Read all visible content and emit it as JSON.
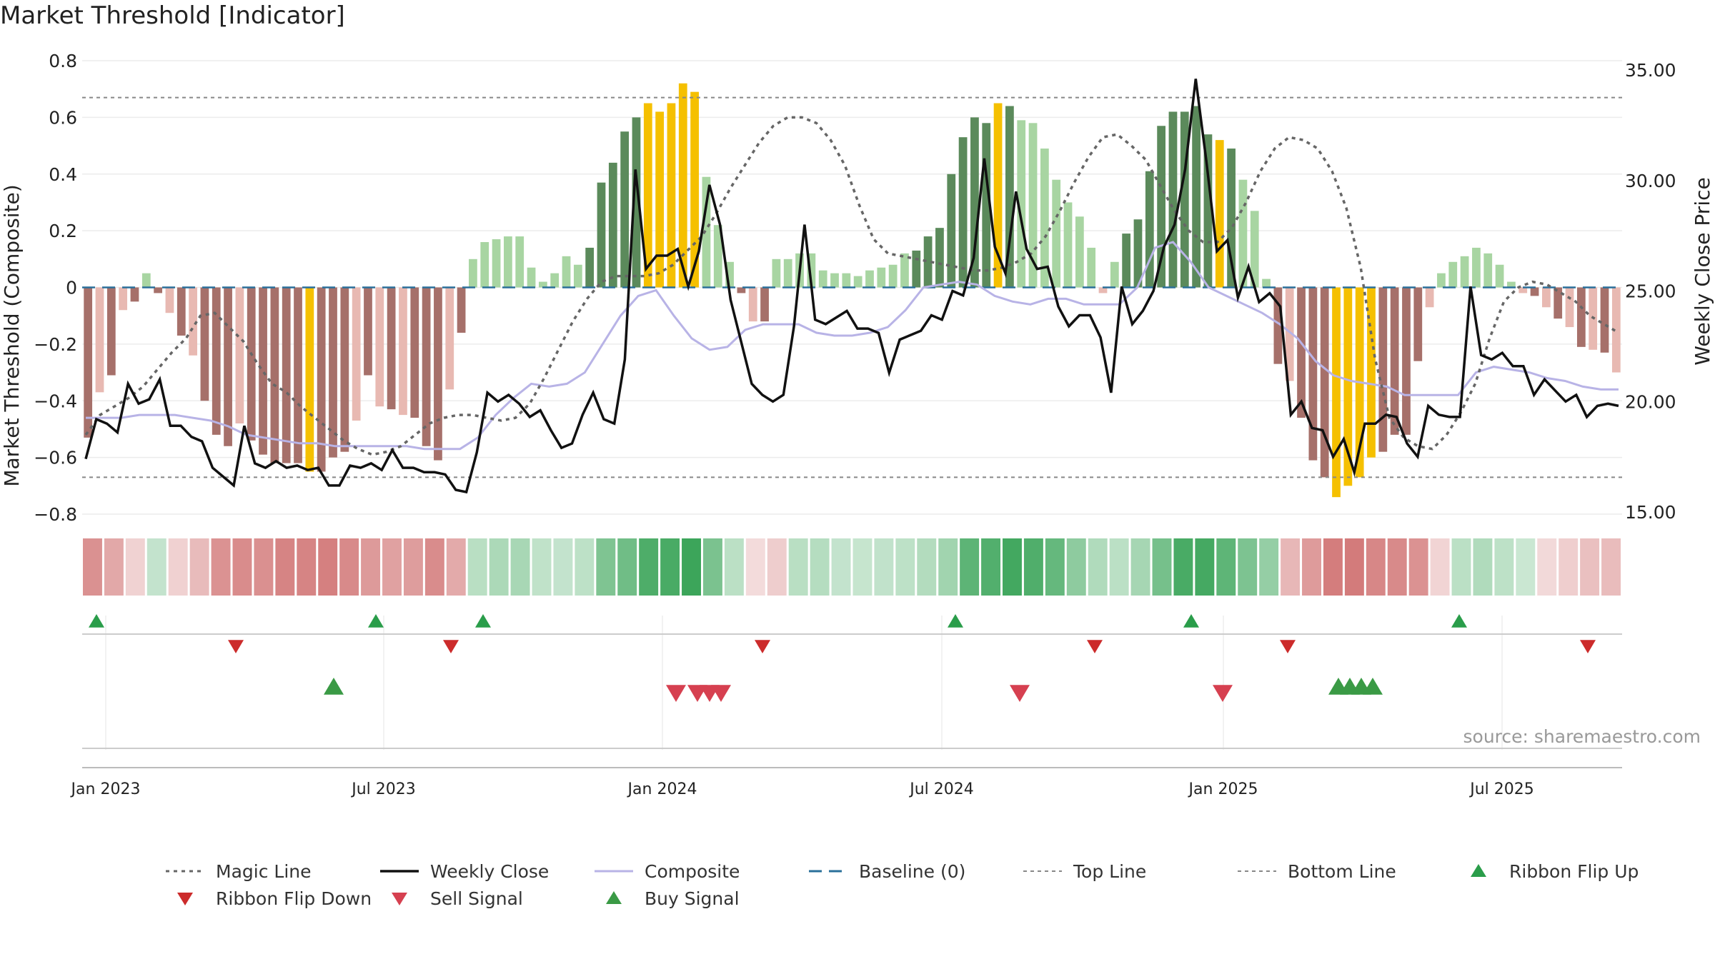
{
  "title": "Market Threshold [Indicator]",
  "source": "source: sharemaestro.com",
  "colors": {
    "strong_green": "#5b8a5b",
    "light_green": "#a8d5a2",
    "strong_red": "#a6706a",
    "light_red": "#e8b9b2",
    "gold": "#f5c000",
    "magic": "#666666",
    "close": "#111111",
    "composite": "#b8b3e6",
    "baseline": "#2a6f9a",
    "refline": "#888888",
    "flip_up": "#2a9d4a",
    "flip_down": "#cc2b2b",
    "sell": "#d64050",
    "buy": "#3a9a45"
  },
  "legend": [
    {
      "key": "magic",
      "label": "Magic Line"
    },
    {
      "key": "close",
      "label": "Weekly Close"
    },
    {
      "key": "composite",
      "label": "Composite"
    },
    {
      "key": "baseline",
      "label": "Baseline (0)"
    },
    {
      "key": "top",
      "label": "Top Line"
    },
    {
      "key": "bottom",
      "label": "Bottom Line"
    },
    {
      "key": "flip_up",
      "label": "Ribbon Flip Up"
    },
    {
      "key": "flip_down",
      "label": "Ribbon Flip Down"
    },
    {
      "key": "sell",
      "label": "Sell Signal"
    },
    {
      "key": "buy",
      "label": "Buy Signal"
    }
  ],
  "chart_data": {
    "type": "bar",
    "title": "Market Threshold [Indicator]",
    "ylabel": "Market Threshold (Composite)",
    "y2label": "Weekly Close Price",
    "ylim": [
      -0.8,
      0.8
    ],
    "y2lim": [
      15.0,
      35.0
    ],
    "yticks": [
      "0.8",
      "0.6",
      "0.4",
      "0.2",
      "0",
      "−0.2",
      "−0.4",
      "−0.6",
      "−0.8"
    ],
    "y2ticks": [
      "35.00",
      "30.00",
      "25.00",
      "20.00",
      "15.00"
    ],
    "xticks": [
      "Jan 2023",
      "Jul 2023",
      "Jan 2024",
      "Jul 2024",
      "Jan 2025",
      "Jul 2025"
    ],
    "top_line": 0.67,
    "bottom_line": -0.67,
    "baseline": 0,
    "composite_bars": [
      -0.53,
      -0.37,
      -0.31,
      -0.08,
      -0.05,
      0.05,
      -0.02,
      -0.09,
      -0.17,
      -0.24,
      -0.4,
      -0.52,
      -0.56,
      -0.48,
      -0.54,
      -0.59,
      -0.62,
      -0.62,
      -0.62,
      -0.65,
      -0.65,
      -0.6,
      -0.58,
      -0.47,
      -0.31,
      -0.42,
      -0.43,
      -0.45,
      -0.46,
      -0.56,
      -0.61,
      -0.36,
      -0.16,
      0.1,
      0.16,
      0.17,
      0.18,
      0.18,
      0.07,
      0.02,
      0.05,
      0.11,
      0.08,
      0.14,
      0.37,
      0.44,
      0.55,
      0.6,
      0.65,
      0.62,
      0.65,
      0.72,
      0.69,
      0.39,
      0.22,
      0.09,
      -0.02,
      -0.12,
      -0.12,
      0.1,
      0.1,
      0.12,
      0.12,
      0.06,
      0.05,
      0.05,
      0.04,
      0.06,
      0.07,
      0.08,
      0.12,
      0.13,
      0.18,
      0.21,
      0.4,
      0.53,
      0.6,
      0.58,
      0.65,
      0.64,
      0.59,
      0.58,
      0.49,
      0.38,
      0.3,
      0.25,
      0.14,
      -0.02,
      0.09,
      0.19,
      0.24,
      0.41,
      0.57,
      0.62,
      0.62,
      0.64,
      0.54,
      0.52,
      0.49,
      0.38,
      0.27,
      0.03,
      -0.27,
      -0.33,
      -0.46,
      -0.61,
      -0.67,
      -0.74,
      -0.7,
      -0.67,
      -0.6,
      -0.58,
      -0.52,
      -0.52,
      -0.26,
      -0.07,
      0.05,
      0.09,
      0.11,
      0.14,
      0.12,
      0.08,
      0.02,
      -0.02,
      -0.03,
      -0.07,
      -0.11,
      -0.14,
      -0.21,
      -0.22,
      -0.23,
      -0.3
    ],
    "weekly_close": [
      17.4,
      19.2,
      19.0,
      18.6,
      20.8,
      19.9,
      20.1,
      21.0,
      18.9,
      18.9,
      18.4,
      18.2,
      17.0,
      16.6,
      16.2,
      18.9,
      17.2,
      17.0,
      17.3,
      17.0,
      17.1,
      16.9,
      17.0,
      16.2,
      16.2,
      17.1,
      17.0,
      17.2,
      16.9,
      17.8,
      17.0,
      17.0,
      16.8,
      16.8,
      16.7,
      16.0,
      15.9,
      17.7,
      20.4,
      20.0,
      20.3,
      19.9,
      19.3,
      19.6,
      18.7,
      17.9,
      18.1,
      19.4,
      20.4,
      19.2,
      19.0,
      21.9,
      30.5,
      26.0,
      26.6,
      26.6,
      26.9,
      25.2,
      26.8,
      29.8,
      28.0,
      24.6,
      22.7,
      20.8,
      20.3,
      20.0,
      20.3,
      23.4,
      28.0,
      23.7,
      23.5,
      23.8,
      24.1,
      23.3,
      23.3,
      23.1,
      21.3,
      22.8,
      23.0,
      23.2,
      23.9,
      23.7,
      25.0,
      24.8,
      26.5,
      31.0,
      27.0,
      25.8,
      29.5,
      26.9,
      26.0,
      26.1,
      24.3,
      23.4,
      23.9,
      23.9,
      22.9,
      20.4,
      25.2,
      23.5,
      24.1,
      25.0,
      27.0,
      28.0,
      30.5,
      34.6,
      30.9,
      26.8,
      27.3,
      24.7,
      26.1,
      24.5,
      24.9,
      24.3,
      19.4,
      20.0,
      18.8,
      18.7,
      17.5,
      18.3,
      16.8,
      19.0,
      19.0,
      19.4,
      19.3,
      18.1,
      17.5,
      19.8,
      19.4,
      19.3,
      19.3,
      25.2,
      22.1,
      21.9,
      22.2,
      21.6,
      21.6,
      20.3,
      21.0,
      20.5,
      20.0,
      20.3,
      19.3,
      19.8,
      19.9,
      19.8
    ],
    "magic_line": [
      -0.52,
      -0.45,
      -0.42,
      -0.39,
      -0.35,
      -0.29,
      -0.23,
      -0.18,
      -0.1,
      -0.09,
      -0.14,
      -0.19,
      -0.27,
      -0.34,
      -0.37,
      -0.42,
      -0.46,
      -0.5,
      -0.54,
      -0.57,
      -0.59,
      -0.58,
      -0.56,
      -0.52,
      -0.48,
      -0.46,
      -0.45,
      -0.45,
      -0.46,
      -0.47,
      -0.46,
      -0.41,
      -0.32,
      -0.22,
      -0.12,
      -0.04,
      0.02,
      0.04,
      0.04,
      0.04,
      0.05,
      0.08,
      0.13,
      0.18,
      0.26,
      0.35,
      0.43,
      0.51,
      0.57,
      0.6,
      0.6,
      0.58,
      0.52,
      0.43,
      0.29,
      0.17,
      0.12,
      0.11,
      0.1,
      0.09,
      0.08,
      0.07,
      0.06,
      0.06,
      0.07,
      0.09,
      0.12,
      0.18,
      0.27,
      0.37,
      0.46,
      0.53,
      0.54,
      0.5,
      0.45,
      0.36,
      0.27,
      0.2,
      0.16,
      0.16,
      0.21,
      0.3,
      0.41,
      0.49,
      0.53,
      0.52,
      0.49,
      0.41,
      0.28,
      0.07,
      -0.25,
      -0.46,
      -0.53,
      -0.56,
      -0.57,
      -0.52,
      -0.44,
      -0.34,
      -0.18,
      -0.05,
      0.0,
      0.02,
      0.01,
      -0.02,
      -0.05,
      -0.1,
      -0.13,
      -0.16
    ],
    "composite_line": [
      -0.46,
      -0.46,
      -0.46,
      -0.45,
      -0.45,
      -0.45,
      -0.46,
      -0.47,
      -0.49,
      -0.52,
      -0.53,
      -0.54,
      -0.55,
      -0.55,
      -0.56,
      -0.56,
      -0.56,
      -0.56,
      -0.56,
      -0.57,
      -0.57,
      -0.57,
      -0.53,
      -0.45,
      -0.39,
      -0.34,
      -0.35,
      -0.34,
      -0.3,
      -0.2,
      -0.1,
      -0.03,
      -0.01,
      -0.1,
      -0.18,
      -0.22,
      -0.21,
      -0.15,
      -0.13,
      -0.13,
      -0.13,
      -0.16,
      -0.17,
      -0.17,
      -0.16,
      -0.14,
      -0.08,
      0.0,
      0.01,
      0.02,
      0.01,
      -0.03,
      -0.05,
      -0.06,
      -0.04,
      -0.04,
      -0.06,
      -0.06,
      -0.06,
      0.0,
      0.14,
      0.16,
      0.09,
      0.0,
      -0.03,
      -0.06,
      -0.09,
      -0.13,
      -0.18,
      -0.26,
      -0.31,
      -0.33,
      -0.34,
      -0.35,
      -0.38,
      -0.38,
      -0.38,
      -0.38,
      -0.3,
      -0.28,
      -0.29,
      -0.3,
      -0.32,
      -0.33,
      -0.35,
      -0.36,
      -0.36
    ],
    "sell_signals": [
      "Jan 2024 (4)",
      "Aug 2024",
      "Jan 2025"
    ],
    "buy_signals": [
      "Jun 2023",
      "Apr 2025 (4)"
    ],
    "ribbon_flip_up": [
      "Jan 2023",
      "Jun 2023",
      "Sep 2023",
      "Jul 2024",
      "Dec 2024",
      "Jun 2025"
    ],
    "ribbon_flip_down": [
      "Apr 2023",
      "Aug 2023",
      "Mar 2024",
      "Oct 2024",
      "Feb 2025",
      "Sep 2025"
    ]
  }
}
